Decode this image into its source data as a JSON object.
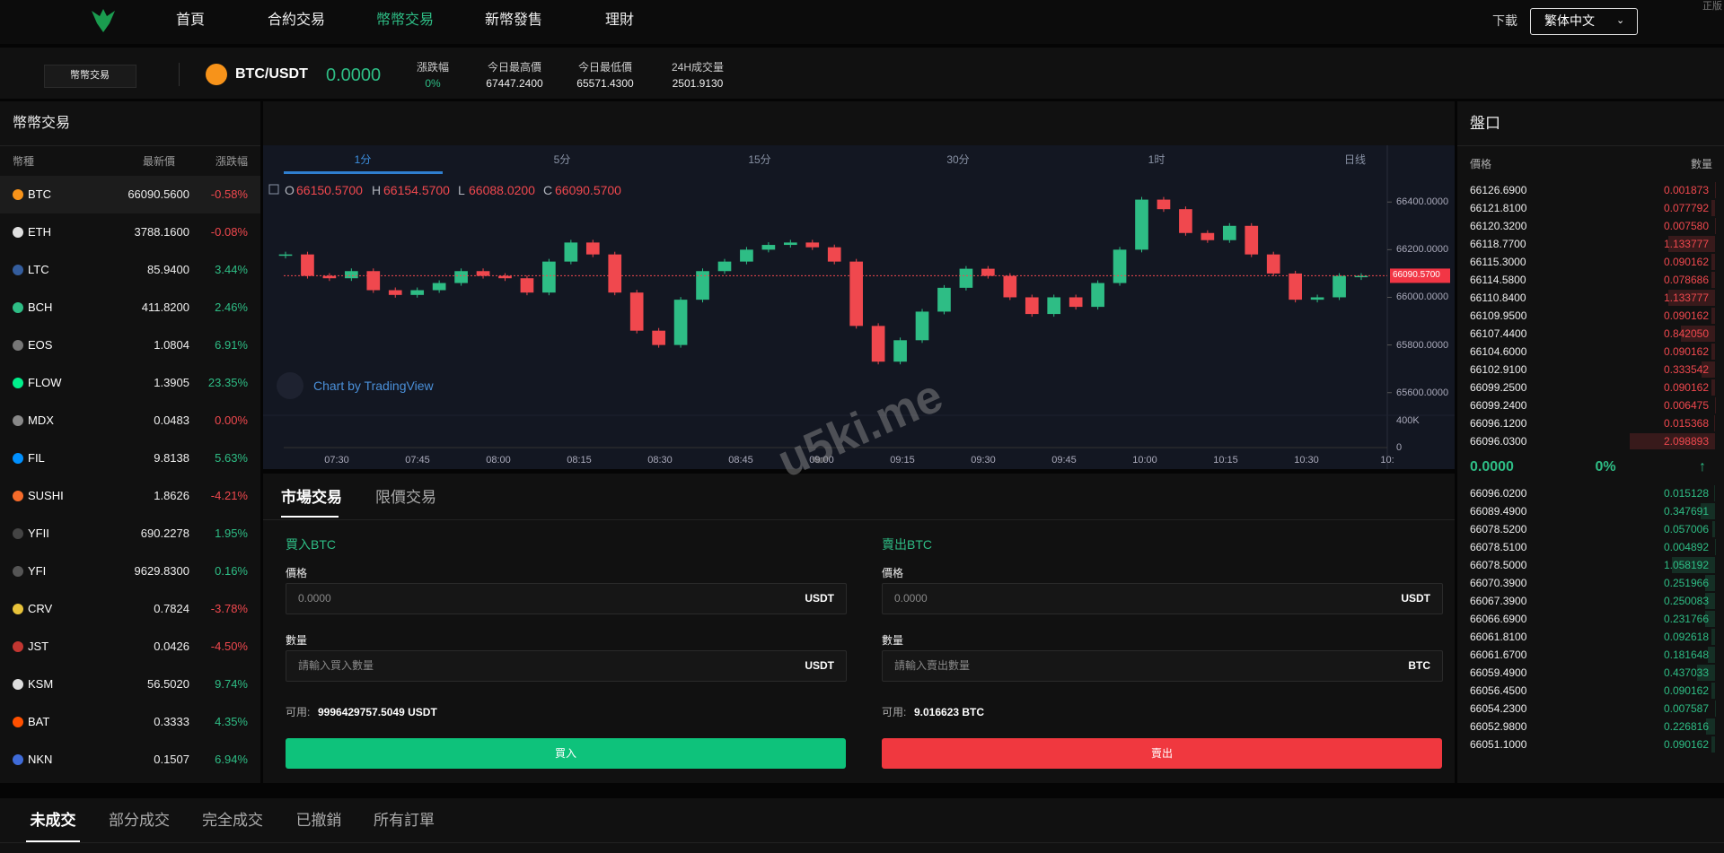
{
  "nav": {
    "items": [
      "首頁",
      "合約交易",
      "幣幣交易",
      "新幣發售",
      "理財"
    ],
    "download": "下載",
    "language": "繁体中文",
    "corner": "正版"
  },
  "ticker": {
    "tab": "幣幣交易",
    "pair": "BTC/USDT",
    "price": "0.0000",
    "stats": [
      {
        "label": "漲跌幅",
        "value": "0%"
      },
      {
        "label": "今日最高價",
        "value": "67447.2400"
      },
      {
        "label": "今日最低價",
        "value": "65571.4300"
      },
      {
        "label": "24H成交量",
        "value": "2501.9130"
      }
    ]
  },
  "market": {
    "title": "幣幣交易",
    "headers": [
      "幣種",
      "最新價",
      "漲跌幅"
    ],
    "rows": [
      {
        "coin": "BTC",
        "price": "66090.5600",
        "change": "-0.58%",
        "icon_color": "#f7931a"
      },
      {
        "coin": "ETH",
        "price": "3788.1600",
        "change": "-0.08%",
        "icon_color": "#e0e0e0"
      },
      {
        "coin": "LTC",
        "price": "85.9400",
        "change": "3.44%",
        "icon_color": "#345d9d"
      },
      {
        "coin": "BCH",
        "price": "411.8200",
        "change": "2.46%",
        "icon_color": "#2ebd85"
      },
      {
        "coin": "EOS",
        "price": "1.0804",
        "change": "6.91%",
        "icon_color": "#777777"
      },
      {
        "coin": "FLOW",
        "price": "1.3905",
        "change": "23.35%",
        "icon_color": "#00ef8b"
      },
      {
        "coin": "MDX",
        "price": "0.0483",
        "change": "0.00%",
        "icon_color": "#888888"
      },
      {
        "coin": "FIL",
        "price": "9.8138",
        "change": "5.63%",
        "icon_color": "#0090ff"
      },
      {
        "coin": "SUSHI",
        "price": "1.8626",
        "change": "-4.21%",
        "icon_color": "#f56b2a"
      },
      {
        "coin": "YFII",
        "price": "690.2278",
        "change": "1.95%",
        "icon_color": "#444444"
      },
      {
        "coin": "YFI",
        "price": "9629.8300",
        "change": "0.16%",
        "icon_color": "#555555"
      },
      {
        "coin": "CRV",
        "price": "0.7824",
        "change": "-3.78%",
        "icon_color": "#e8c33a"
      },
      {
        "coin": "JST",
        "price": "0.0426",
        "change": "-4.50%",
        "icon_color": "#c23631"
      },
      {
        "coin": "KSM",
        "price": "56.5020",
        "change": "9.74%",
        "icon_color": "#dddddd"
      },
      {
        "coin": "BAT",
        "price": "0.3333",
        "change": "4.35%",
        "icon_color": "#ff5000"
      },
      {
        "coin": "NKN",
        "price": "0.1507",
        "change": "6.94%",
        "icon_color": "#3f6bd8"
      }
    ]
  },
  "chart": {
    "type": "candlestick",
    "intervals": [
      "1分",
      "5分",
      "15分",
      "30分",
      "1时",
      "日线"
    ],
    "ohlc": [
      {
        "label": "O",
        "value": "66150.5700"
      },
      {
        "label": "H",
        "value": "66154.5700"
      },
      {
        "label": "L",
        "value": "66088.0200"
      },
      {
        "label": "C",
        "value": "66090.5700"
      }
    ],
    "credit": "Chart by TradingView",
    "last_price": "66090.5700",
    "ylim": [
      65520,
      66510
    ],
    "yticks": [
      {
        "value": 65600,
        "label": "65600.0000"
      },
      {
        "value": 65800,
        "label": "65800.0000"
      },
      {
        "value": 66000,
        "label": "66000.0000"
      },
      {
        "value": 66200,
        "label": "66200.0000"
      },
      {
        "value": 66400,
        "label": "66400.0000"
      }
    ],
    "closes": [
      66180,
      66090,
      66080,
      66110,
      66030,
      66010,
      66030,
      66060,
      66110,
      66090,
      66080,
      66020,
      66150,
      66230,
      66180,
      66020,
      65860,
      65800,
      65990,
      66110,
      66150,
      66200,
      66220,
      66230,
      66210,
      66150,
      65880,
      65730,
      65820,
      65940,
      66040,
      66120,
      66090,
      66000,
      65930,
      66000,
      65960,
      66060,
      66200,
      66410,
      66370,
      66270,
      66240,
      66300,
      66180,
      66100,
      65990,
      66000,
      66090,
      66090
    ],
    "times": [
      "07:30",
      "07:45",
      "08:00",
      "08:15",
      "08:30",
      "08:45",
      "09:00",
      "09:15",
      "09:30",
      "09:45",
      "10:00",
      "10:15",
      "10:30",
      "10:"
    ],
    "volume_ticks": [
      "400K",
      "0"
    ],
    "watermark": "u5ki.me"
  },
  "trade": {
    "tabs": [
      "市場交易",
      "限價交易"
    ],
    "buy": {
      "title": "買入BTC",
      "price_label": "價格",
      "price_placeholder": "0.0000",
      "price_unit": "USDT",
      "amount_label": "數量",
      "amount_placeholder": "請輸入買入數量",
      "amount_unit": "USDT",
      "available_label": "可用:",
      "available": "9996429757.5049 USDT",
      "button": "買入"
    },
    "sell": {
      "title": "賣出BTC",
      "price_label": "價格",
      "price_placeholder": "0.0000",
      "price_unit": "USDT",
      "amount_label": "數量",
      "amount_placeholder": "請輸入賣出數量",
      "amount_unit": "BTC",
      "available_label": "可用:",
      "available": "9.016623 BTC",
      "button": "賣出"
    }
  },
  "orderbook": {
    "title": "盤口",
    "headers": [
      "價格",
      "數量"
    ],
    "asks": [
      [
        "66126.6900",
        "0.001873"
      ],
      [
        "66121.8100",
        "0.077792"
      ],
      [
        "66120.3200",
        "0.007580"
      ],
      [
        "66118.7700",
        "1.133777"
      ],
      [
        "66115.3000",
        "0.090162"
      ],
      [
        "66114.5800",
        "0.078686"
      ],
      [
        "66110.8400",
        "1.133777"
      ],
      [
        "66109.9500",
        "0.090162"
      ],
      [
        "66107.4400",
        "0.842050"
      ],
      [
        "66104.6000",
        "0.090162"
      ],
      [
        "66102.9100",
        "0.333542"
      ],
      [
        "66099.2500",
        "0.090162"
      ],
      [
        "66099.2400",
        "0.006475"
      ],
      [
        "66096.1200",
        "0.015368"
      ],
      [
        "66096.0300",
        "2.098893"
      ]
    ],
    "last": "0.0000",
    "change": "0%",
    "bids": [
      [
        "66096.0200",
        "0.015128"
      ],
      [
        "66089.4900",
        "0.347691"
      ],
      [
        "66078.5200",
        "0.057006"
      ],
      [
        "66078.5100",
        "0.004892"
      ],
      [
        "66078.5000",
        "1.058192"
      ],
      [
        "66070.3900",
        "0.251966"
      ],
      [
        "66067.3900",
        "0.250083"
      ],
      [
        "66066.6900",
        "0.231766"
      ],
      [
        "66061.8100",
        "0.092618"
      ],
      [
        "66061.6700",
        "0.181648"
      ],
      [
        "66059.4900",
        "0.437033"
      ],
      [
        "66056.4500",
        "0.090162"
      ],
      [
        "66054.2300",
        "0.007587"
      ],
      [
        "66052.9800",
        "0.226816"
      ],
      [
        "66051.1000",
        "0.090162"
      ]
    ]
  },
  "orders": {
    "tabs": [
      "未成交",
      "部分成交",
      "完全成交",
      "已撤銷",
      "所有訂單"
    ]
  }
}
